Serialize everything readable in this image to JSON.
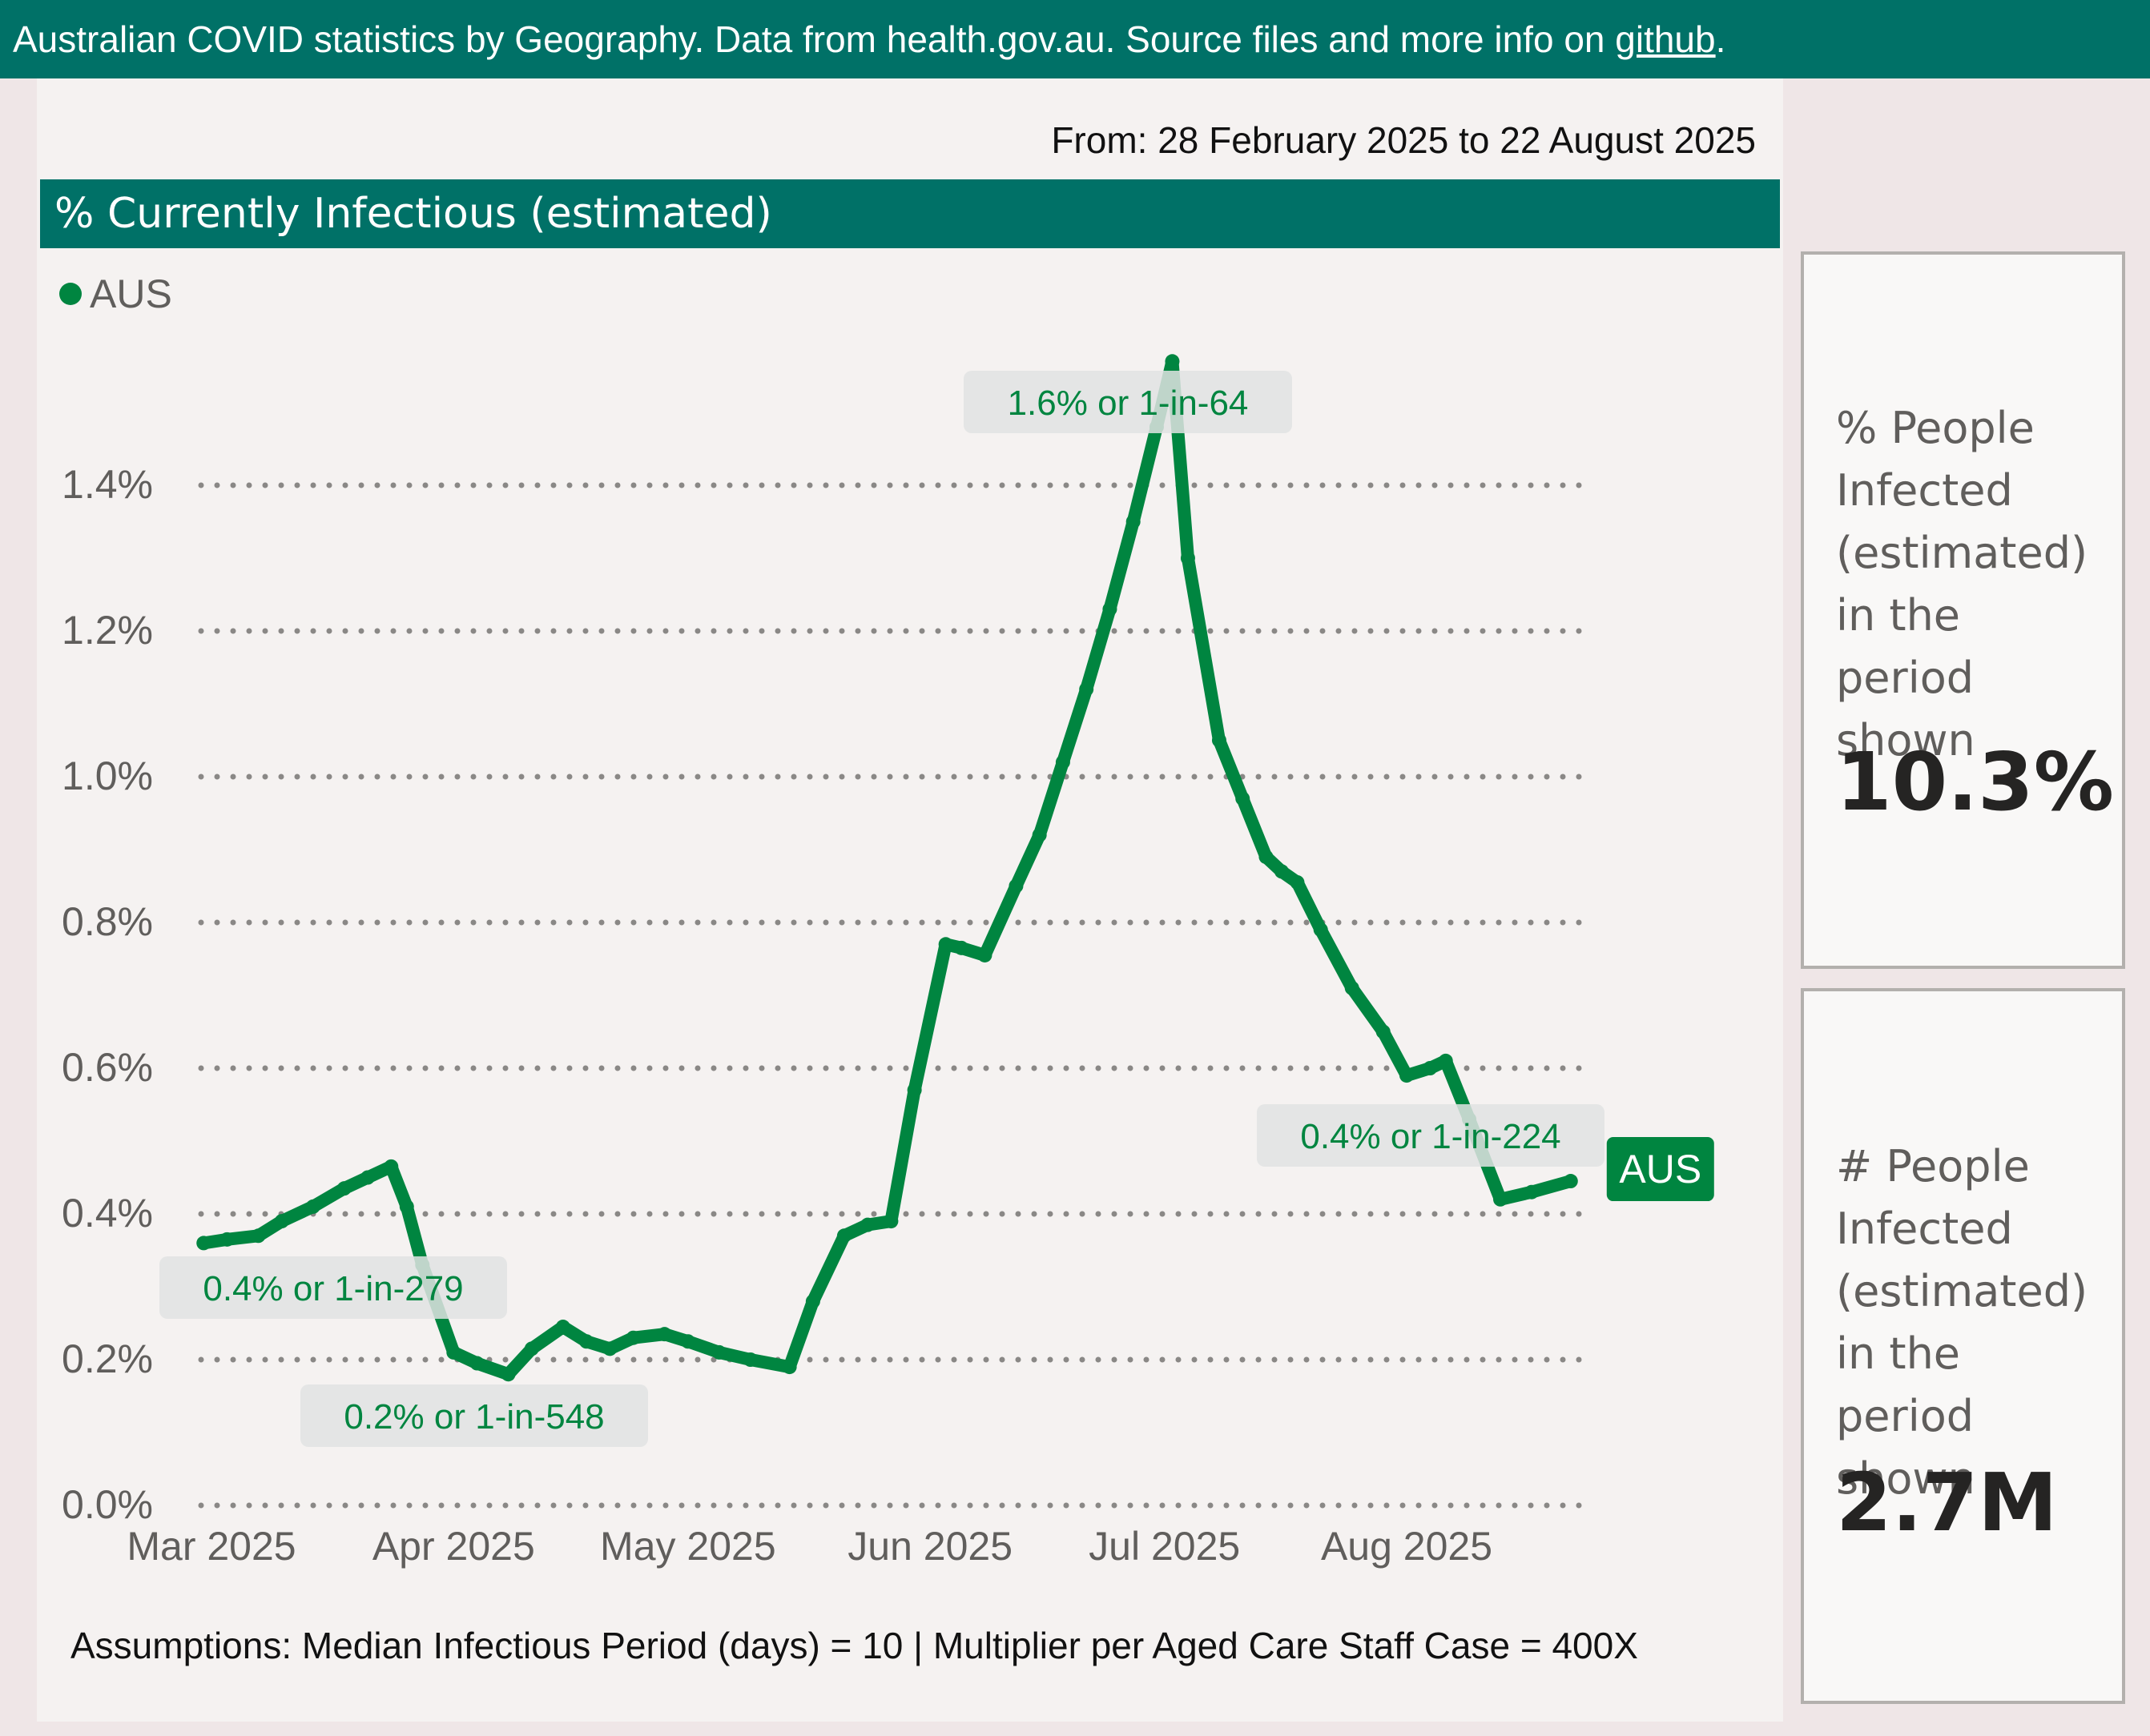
{
  "header": {
    "text_before_link": "Australian COVID statistics by Geography. Data from health.gov.au. Source files and more info on ",
    "link_text": "github",
    "text_after_link": "."
  },
  "date_range": "From: 28 February 2025 to 22 August 2025",
  "chart_title": "% Currently Infectious (estimated)",
  "assumptions": "Assumptions: Median Infectious Period (days) = 10 | Multiplier per Aged Care Staff Case = 400X",
  "cards": [
    {
      "label": "% People Infected (estimated) in the period shown",
      "value": "10.3%"
    },
    {
      "label": "# People Infected (estimated) in the period shown",
      "value": "2.7M"
    }
  ],
  "colors": {
    "brand": "#007167",
    "series": "#008540",
    "grid": "#8A8886"
  },
  "chart_data": {
    "type": "line",
    "title": "% Currently Infectious (estimated)",
    "xlabel": "",
    "ylabel": "",
    "ylim": [
      0,
      1.6
    ],
    "y_ticks": [
      0,
      0.2,
      0.4,
      0.6,
      0.8,
      1.0,
      1.2,
      1.4
    ],
    "y_tick_labels": [
      "0.0%",
      "0.2%",
      "0.4%",
      "0.6%",
      "0.8%",
      "1.0%",
      "1.2%",
      "1.4%"
    ],
    "x_ticks": [
      "2025-03-01",
      "2025-04-01",
      "2025-05-01",
      "2025-06-01",
      "2025-07-01",
      "2025-08-01"
    ],
    "x_tick_labels": [
      "Mar 2025",
      "Apr 2025",
      "May 2025",
      "Jun 2025",
      "Jul 2025",
      "Aug 2025"
    ],
    "xlim": [
      "2025-02-28",
      "2025-08-22"
    ],
    "grid": true,
    "legend": "top-left",
    "series": [
      {
        "name": "AUS",
        "end_label": "AUS",
        "x": [
          "2025-02-28",
          "2025-03-03",
          "2025-03-07",
          "2025-03-10",
          "2025-03-14",
          "2025-03-18",
          "2025-03-21",
          "2025-03-24",
          "2025-03-26",
          "2025-03-28",
          "2025-04-01",
          "2025-04-04",
          "2025-04-08",
          "2025-04-11",
          "2025-04-15",
          "2025-04-18",
          "2025-04-21",
          "2025-04-24",
          "2025-04-28",
          "2025-05-01",
          "2025-05-05",
          "2025-05-09",
          "2025-05-14",
          "2025-05-17",
          "2025-05-21",
          "2025-05-24",
          "2025-05-27",
          "2025-05-30",
          "2025-06-03",
          "2025-06-05",
          "2025-06-08",
          "2025-06-12",
          "2025-06-15",
          "2025-06-18",
          "2025-06-21",
          "2025-06-24",
          "2025-06-27",
          "2025-06-30",
          "2025-07-02",
          "2025-07-04",
          "2025-07-08",
          "2025-07-11",
          "2025-07-14",
          "2025-07-16",
          "2025-07-18",
          "2025-07-21",
          "2025-07-25",
          "2025-07-29",
          "2025-08-01",
          "2025-08-04",
          "2025-08-06",
          "2025-08-09",
          "2025-08-13",
          "2025-08-17",
          "2025-08-22"
        ],
        "values": [
          0.36,
          0.365,
          0.37,
          0.39,
          0.41,
          0.435,
          0.45,
          0.465,
          0.41,
          0.33,
          0.21,
          0.195,
          0.18,
          0.215,
          0.245,
          0.225,
          0.215,
          0.23,
          0.235,
          0.225,
          0.21,
          0.2,
          0.19,
          0.28,
          0.37,
          0.385,
          0.39,
          0.57,
          0.77,
          0.765,
          0.755,
          0.85,
          0.92,
          1.02,
          1.12,
          1.23,
          1.35,
          1.48,
          1.57,
          1.3,
          1.05,
          0.97,
          0.89,
          0.87,
          0.855,
          0.79,
          0.71,
          0.65,
          0.59,
          0.6,
          0.61,
          0.53,
          0.42,
          0.43,
          0.445
        ]
      }
    ],
    "annotations": [
      {
        "text": "0.4% or 1-in-279",
        "x": "2025-02-28",
        "value": 0.36
      },
      {
        "text": "0.2% or 1-in-548",
        "x": "2025-04-08",
        "value": 0.18
      },
      {
        "text": "1.6% or 1-in-64",
        "x": "2025-07-02",
        "value": 1.57
      },
      {
        "text": "0.4% or 1-in-224",
        "x": "2025-08-22",
        "value": 0.445
      }
    ]
  }
}
